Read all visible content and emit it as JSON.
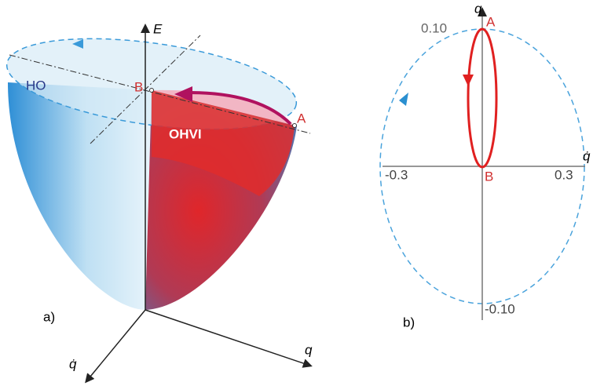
{
  "panel_a": {
    "axis_e": "E",
    "region_ho": "HO",
    "point_b": "B",
    "region_ohvi": "OHVI",
    "point_a": "A",
    "label": "a)",
    "axis_q": "q",
    "axis_qdot": "q̇"
  },
  "panel_b": {
    "axis_q": "q",
    "point_a": "A",
    "tick_top": "0.10",
    "point_b": "B",
    "tick_left": "-0.3",
    "tick_right": "0.3",
    "axis_qdot": "q̇",
    "tick_bottom": "-0.10",
    "label": "b)"
  }
}
